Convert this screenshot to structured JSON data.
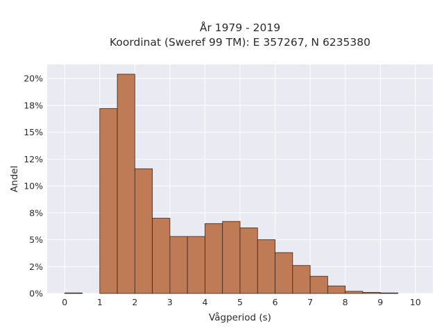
{
  "chart_data": {
    "type": "bar",
    "title_line1": "År 1979 - 2019",
    "title_line2": "Koordinat (Sweref 99 TM): E 357267, N 6235380",
    "xlabel": "Vågperiod (s)",
    "ylabel": "Andel",
    "bin_width": 0.5,
    "bins_start": [
      0,
      0.5,
      1,
      1.5,
      2,
      2.5,
      3,
      3.5,
      4,
      4.5,
      5,
      5.5,
      6,
      6.5,
      7,
      7.5,
      8,
      8.5,
      9,
      9.5
    ],
    "values": [
      0.05,
      0.0,
      17.2,
      20.4,
      11.6,
      7.0,
      5.3,
      5.3,
      6.5,
      6.7,
      6.1,
      5.0,
      3.8,
      2.6,
      1.6,
      0.7,
      0.2,
      0.1,
      0.05,
      0.0
    ],
    "xlim": [
      -0.5,
      10.5
    ],
    "ylim": [
      0,
      21.3
    ],
    "xticks": [
      0,
      1,
      2,
      3,
      4,
      5,
      6,
      7,
      8,
      9,
      10
    ],
    "yticks": [
      0,
      2.5,
      5,
      7.5,
      10,
      12.5,
      15,
      17.5,
      20
    ],
    "ytick_labels": [
      "0%",
      "2%",
      "5%",
      "8%",
      "10%",
      "12%",
      "15%",
      "18%",
      "20%"
    ],
    "grid": true,
    "colors": {
      "bar_fill": "#bf7b55",
      "bar_edge": "#3a2418",
      "plot_bg": "#eaeaf2",
      "grid": "#ffffff"
    }
  }
}
